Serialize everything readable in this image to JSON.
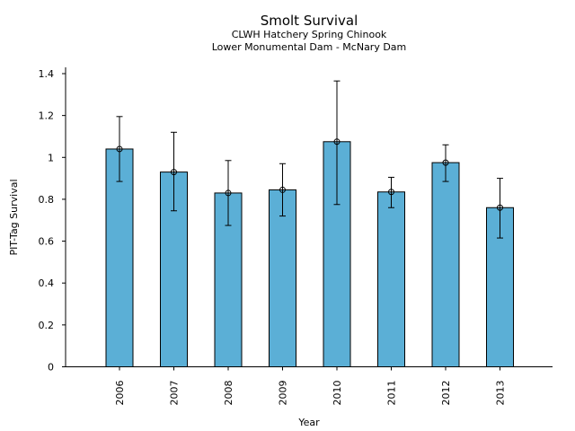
{
  "chart_data": {
    "type": "bar",
    "title": "Smolt Survival",
    "subtitle_lines": [
      "CLWH Hatchery Spring Chinook",
      "Lower Monumental Dam - McNary Dam"
    ],
    "xlabel": "Year",
    "ylabel": "PIT-Tag Survival",
    "categories": [
      "2006",
      "2007",
      "2008",
      "2009",
      "2010",
      "2011",
      "2012",
      "2013"
    ],
    "values": [
      1.04,
      0.93,
      0.83,
      0.845,
      1.075,
      0.835,
      0.975,
      0.76
    ],
    "error_low": [
      0.885,
      0.745,
      0.675,
      0.72,
      0.775,
      0.76,
      0.885,
      0.615
    ],
    "error_high": [
      1.195,
      1.12,
      0.985,
      0.97,
      1.365,
      0.905,
      1.06,
      0.9
    ],
    "ylim": [
      0,
      1.43
    ],
    "yticks": [
      0,
      0.2,
      0.4,
      0.6,
      0.8,
      1,
      1.2,
      1.4
    ],
    "ytick_labels": [
      "0",
      "0.2",
      "0.4",
      "0.6",
      "0.8",
      "1",
      "1.2",
      "1.4"
    ],
    "grid": false,
    "legend": "none",
    "bar_color": "#5bafd6"
  }
}
